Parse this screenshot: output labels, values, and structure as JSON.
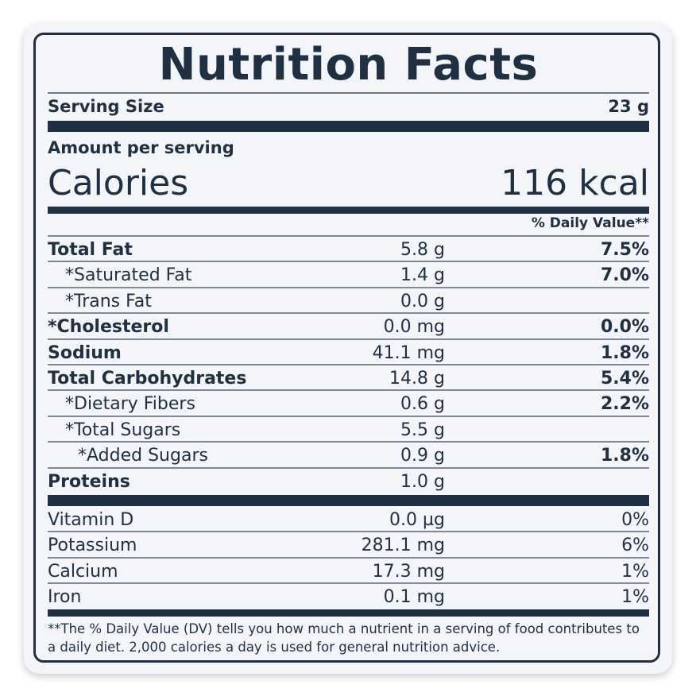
{
  "title": "Nutrition Facts",
  "serving": {
    "label": "Serving Size",
    "value": "23 g"
  },
  "amount_per_serving": "Amount per serving",
  "calories": {
    "label": "Calories",
    "value": "116 kcal"
  },
  "dv_header": "% Daily Value**",
  "nutrients": [
    {
      "name": "Total Fat",
      "amount": "5.8 g",
      "dv": "7.5%",
      "bold": true,
      "indent": 0
    },
    {
      "name": "*Saturated Fat",
      "amount": "1.4 g",
      "dv": "7.0%",
      "bold": false,
      "indent": 1
    },
    {
      "name": "*Trans Fat",
      "amount": "0.0 g",
      "dv": "",
      "bold": false,
      "indent": 1
    },
    {
      "name": "*Cholesterol",
      "amount": "0.0 mg",
      "dv": "0.0%",
      "bold": true,
      "indent": 0
    },
    {
      "name": "Sodium",
      "amount": "41.1 mg",
      "dv": "1.8%",
      "bold": true,
      "indent": 0
    },
    {
      "name": "Total Carbohydrates",
      "amount": "14.8 g",
      "dv": "5.4%",
      "bold": true,
      "indent": 0
    },
    {
      "name": "*Dietary Fibers",
      "amount": "0.6 g",
      "dv": "2.2%",
      "bold": false,
      "indent": 1
    },
    {
      "name": "*Total Sugars",
      "amount": "5.5 g",
      "dv": "",
      "bold": false,
      "indent": 1
    },
    {
      "name": "*Added Sugars",
      "amount": "0.9 g",
      "dv": "1.8%",
      "bold": false,
      "indent": 2
    },
    {
      "name": "Proteins",
      "amount": "1.0 g",
      "dv": "",
      "bold": true,
      "indent": 0
    }
  ],
  "vitamins": [
    {
      "name": "Vitamin D",
      "amount": "0.0 µg",
      "dv": "0%"
    },
    {
      "name": "Potassium",
      "amount": "281.1 mg",
      "dv": "6%"
    },
    {
      "name": "Calcium",
      "amount": "17.3 mg",
      "dv": "1%"
    },
    {
      "name": "Iron",
      "amount": "0.1 mg",
      "dv": "1%"
    }
  ],
  "footnote": "**The % Daily Value (DV) tells you how much a nutrient in a serving of food contributes to a daily diet. 2,000 calories a day is used for general nutrition advice."
}
